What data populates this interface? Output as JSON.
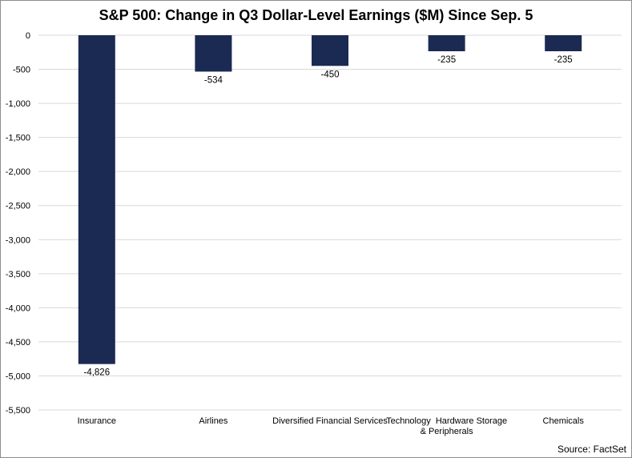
{
  "chart_data": {
    "type": "bar",
    "title": "S&P 500: Change in Q3 Dollar-Level Earnings ($M) Since Sep. 5",
    "categories": [
      "Insurance",
      "Airlines",
      "Diversified Financial Services",
      "Technology Hardware Storage & Peripherals",
      "Chemicals"
    ],
    "category_label_lines": [
      [
        "Insurance"
      ],
      [
        "Airlines"
      ],
      [
        "Diversified Financial Services"
      ],
      [
        "Technology  Hardware Storage",
        "& Peripherals"
      ],
      [
        "Chemicals"
      ]
    ],
    "values": [
      -4826,
      -534,
      -450,
      -235,
      -235
    ],
    "data_labels": [
      "-4,826",
      "-534",
      "-450",
      "-235",
      "-235"
    ],
    "ylim": [
      -5500,
      0
    ],
    "yticks": [
      0,
      -500,
      -1000,
      -1500,
      -2000,
      -2500,
      -3000,
      -3500,
      -4000,
      -4500,
      -5000,
      -5500
    ],
    "ytick_labels": [
      "0",
      "-500",
      "-1,000",
      "-1,500",
      "-2,000",
      "-2,500",
      "-3,000",
      "-3,500",
      "-4,000",
      "-4,500",
      "-5,000",
      "-5,500"
    ],
    "grid": true,
    "xlabel": "",
    "ylabel": "",
    "bar_color": "#1b2a52",
    "grid_color": "#d9d9d9",
    "source": "Source: FactSet"
  }
}
